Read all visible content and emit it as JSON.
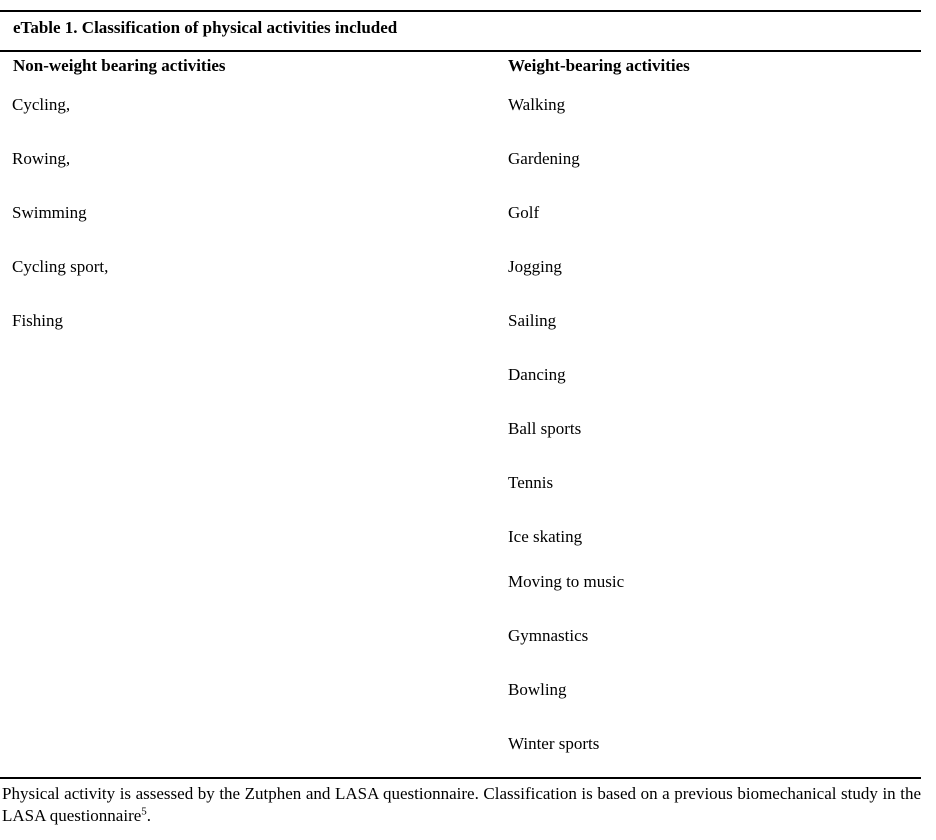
{
  "title": "eTable 1. Classification of physical activities included",
  "table": {
    "columns": [
      {
        "header": "Non-weight bearing activities",
        "items": [
          "Cycling,",
          "Rowing,",
          "Swimming",
          "Cycling sport,",
          "Fishing"
        ]
      },
      {
        "header": "Weight-bearing activities",
        "items": [
          "Walking",
          "Gardening",
          "Golf",
          "Jogging",
          "Sailing",
          "Dancing",
          "Ball sports",
          "Tennis",
          "Ice skating",
          "Moving to music",
          "Gymnastics",
          "Bowling",
          "Winter sports"
        ]
      }
    ]
  },
  "footnote": {
    "text_before_sup": "Physical activity is assessed by the Zutphen and LASA questionnaire. Classification is based on a previous biomechanical study in the LASA questionnaire",
    "superscript": "5",
    "text_after_sup": "."
  },
  "colors": {
    "text": "#000000",
    "background": "#ffffff",
    "rule": "#000000"
  }
}
